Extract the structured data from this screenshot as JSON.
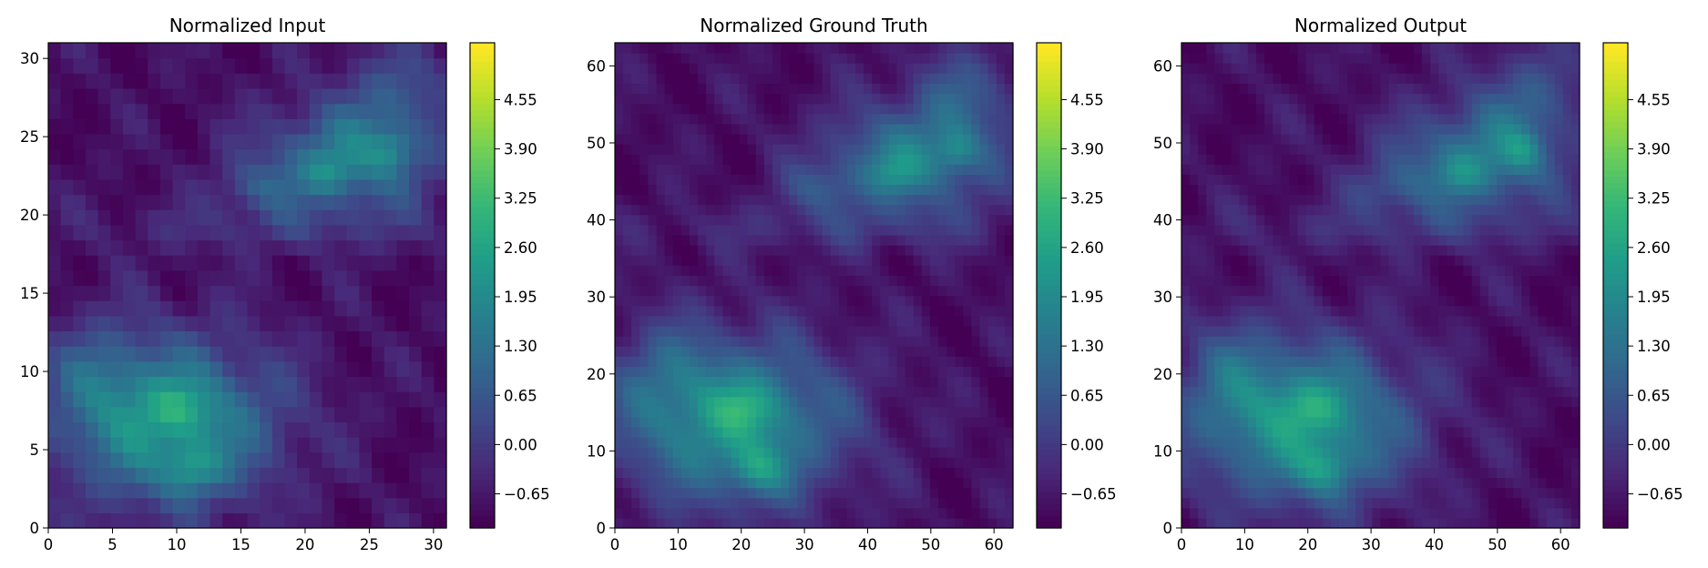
{
  "colormap": "viridis",
  "chart_data": [
    {
      "type": "heatmap",
      "title": "Normalized Input",
      "xlabel": "",
      "ylabel": "",
      "xlim": [
        0,
        31
      ],
      "ylim": [
        0,
        31
      ],
      "xticks": [
        0,
        5,
        10,
        15,
        20,
        25,
        30
      ],
      "yticks": [
        0,
        5,
        10,
        15,
        20,
        25,
        30
      ],
      "grid": false
    },
    {
      "type": "heatmap",
      "title": "Normalized Ground Truth",
      "xlabel": "",
      "ylabel": "",
      "xlim": [
        0,
        63
      ],
      "ylim": [
        0,
        63
      ],
      "xticks": [
        0,
        10,
        20,
        30,
        40,
        50,
        60
      ],
      "yticks": [
        0,
        10,
        20,
        30,
        40,
        50,
        60
      ],
      "grid": false
    },
    {
      "type": "heatmap",
      "title": "Normalized Output",
      "xlabel": "",
      "ylabel": "",
      "xlim": [
        0,
        63
      ],
      "ylim": [
        0,
        63
      ],
      "xticks": [
        0,
        10,
        20,
        30,
        40,
        50,
        60
      ],
      "yticks": [
        0,
        10,
        20,
        30,
        40,
        50,
        60
      ],
      "grid": false
    }
  ],
  "colorbar": {
    "range": [
      -1.1,
      5.3
    ],
    "ticks": [
      -0.65,
      0.0,
      0.65,
      1.3,
      1.95,
      2.6,
      3.25,
      3.9,
      4.55
    ],
    "tick_labels": [
      "−0.65",
      "0.00",
      "0.65",
      "1.30",
      "1.95",
      "2.60",
      "3.25",
      "3.90",
      "4.55"
    ]
  }
}
